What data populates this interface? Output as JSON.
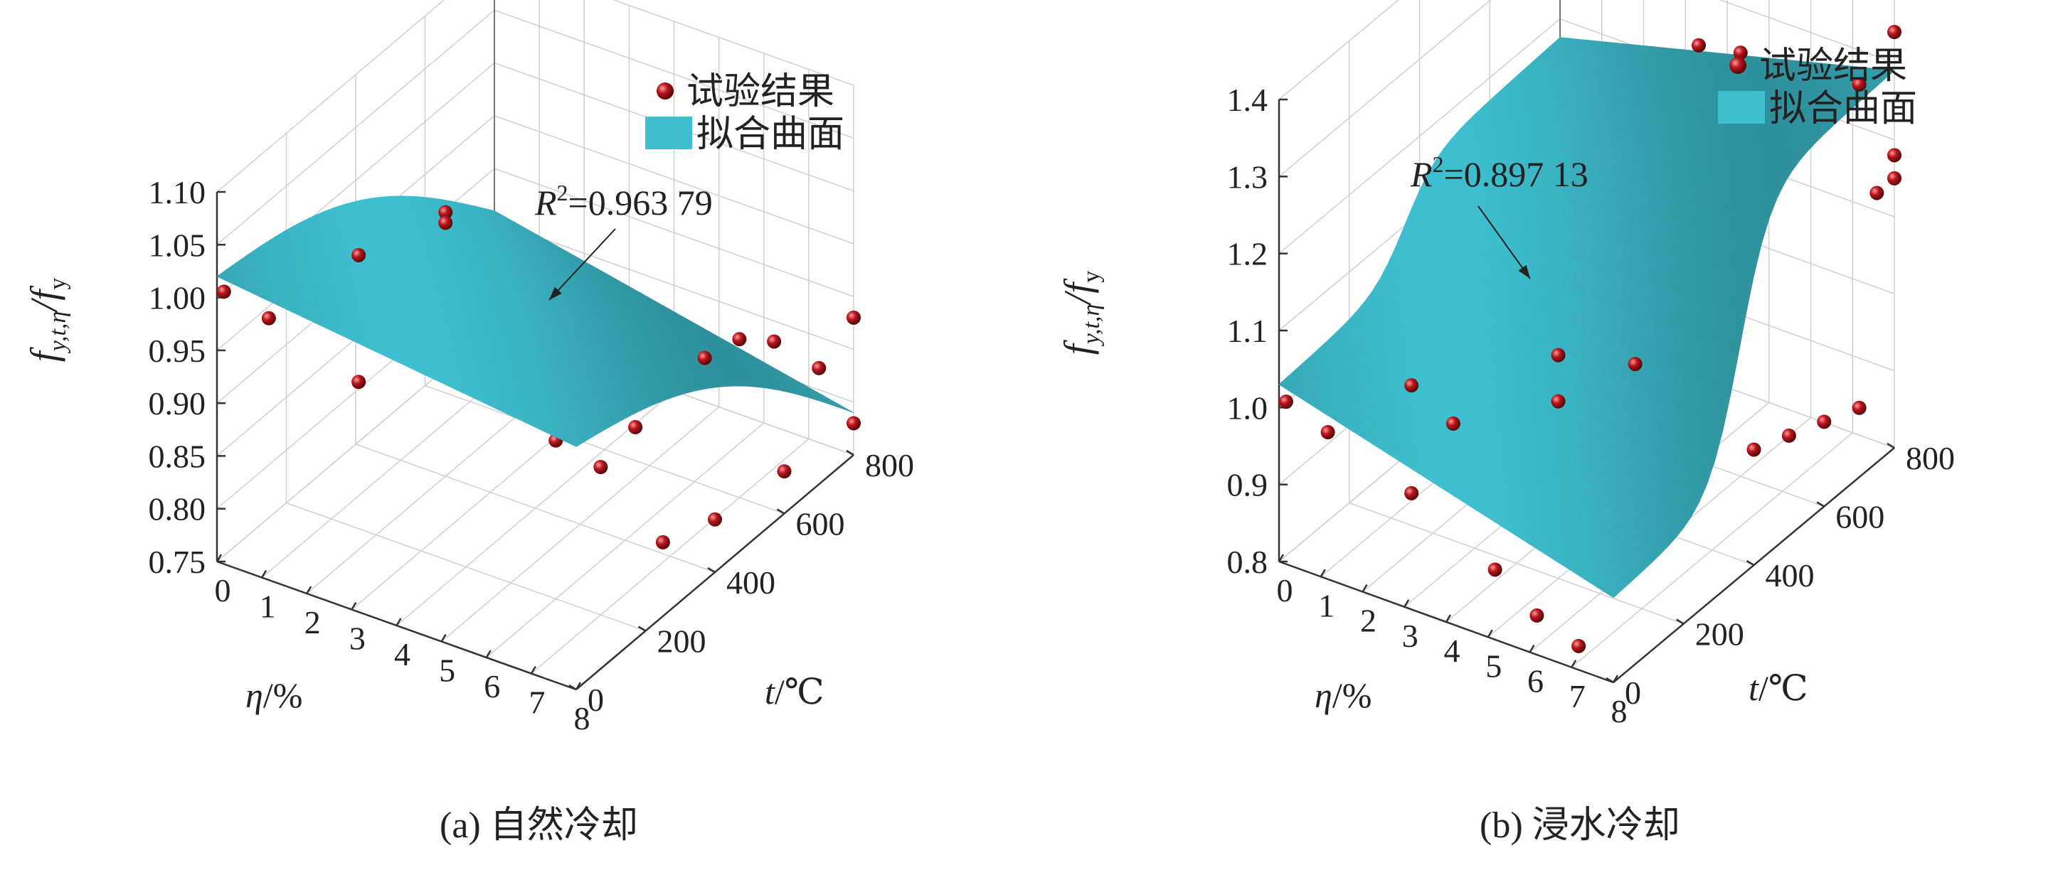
{
  "chart_data": [
    {
      "type": "surface3d",
      "panel_label": "(a)",
      "caption": "自然冷却",
      "ylabel_text": "f",
      "ylabel_sub1": "y,t,η",
      "ylabel_mid": "/f",
      "ylabel_sub2": "y",
      "eta_label": "η/%",
      "t_label": "t/℃",
      "zlim": [
        0.75,
        1.1
      ],
      "z_ticks": [
        "0.75",
        "0.80",
        "0.85",
        "0.90",
        "0.95",
        "1.00",
        "1.05",
        "1.10"
      ],
      "eta_ticks": [
        "0",
        "1",
        "2",
        "3",
        "4",
        "5",
        "6",
        "7",
        "8"
      ],
      "t_ticks": [
        "0",
        "200",
        "400",
        "600",
        "800"
      ],
      "legend": {
        "points": "试验结果",
        "surface": "拟合曲面"
      },
      "annotation": {
        "r": "R",
        "sup": "2",
        "value": "=0.963 79"
      },
      "colors": {
        "surface": "#3ebfcf",
        "surface_edge": "#2a9aa9",
        "points": "#b8151c"
      },
      "points": [
        {
          "eta": 0,
          "t": 20,
          "z": 1.0
        },
        {
          "eta": 1,
          "t": 20,
          "z": 0.99
        },
        {
          "eta": 3,
          "t": 20,
          "z": 1.08
        },
        {
          "eta": 3,
          "t": 20,
          "z": 0.96
        },
        {
          "eta": 5,
          "t": 200,
          "z": 0.92
        },
        {
          "eta": 6,
          "t": 200,
          "z": 0.9
        },
        {
          "eta": 7,
          "t": 200,
          "z": 0.89
        },
        {
          "eta": 7,
          "t": 300,
          "z": 0.9
        },
        {
          "eta": 2,
          "t": 400,
          "z": 1.0
        },
        {
          "eta": 2,
          "t": 400,
          "z": 0.99
        },
        {
          "eta": 6,
          "t": 500,
          "z": 0.91
        },
        {
          "eta": 7,
          "t": 500,
          "z": 0.91
        },
        {
          "eta": 7,
          "t": 600,
          "z": 0.9
        },
        {
          "eta": 7,
          "t": 700,
          "z": 0.87
        },
        {
          "eta": 8,
          "t": 700,
          "z": 0.86
        },
        {
          "eta": 8,
          "t": 800,
          "z": 0.88
        },
        {
          "eta": 8,
          "t": 400,
          "z": 0.8
        },
        {
          "eta": 8,
          "t": 600,
          "z": 0.79
        },
        {
          "eta": 8,
          "t": 800,
          "z": 0.78
        },
        {
          "eta": 8,
          "t": 250,
          "z": 0.82
        }
      ]
    },
    {
      "type": "surface3d",
      "panel_label": "(b)",
      "caption": "浸水冷却",
      "ylabel_text": "f",
      "ylabel_sub1": "y,t,η",
      "ylabel_mid": "/f",
      "ylabel_sub2": "y",
      "eta_label": "η/%",
      "t_label": "t/℃",
      "zlim": [
        0.8,
        1.4
      ],
      "z_ticks": [
        "0.8",
        "0.9",
        "1.0",
        "1.1",
        "1.2",
        "1.3",
        "1.4"
      ],
      "eta_ticks": [
        "0",
        "1",
        "2",
        "3",
        "4",
        "5",
        "6",
        "7",
        "8"
      ],
      "t_ticks": [
        "0",
        "200",
        "400",
        "600",
        "800"
      ],
      "legend": {
        "points": "试验结果",
        "surface": "拟合曲面"
      },
      "annotation": {
        "r": "R",
        "sup": "2",
        "value": "=0.897 13"
      },
      "colors": {
        "surface": "#3ebfcf",
        "surface_edge": "#2a9aa9",
        "points": "#b8151c"
      },
      "points": [
        {
          "eta": 0,
          "t": 20,
          "z": 1.0
        },
        {
          "eta": 1,
          "t": 20,
          "z": 0.98
        },
        {
          "eta": 3,
          "t": 20,
          "z": 0.94
        },
        {
          "eta": 3,
          "t": 20,
          "z": 1.08
        },
        {
          "eta": 4,
          "t": 20,
          "z": 1.05
        },
        {
          "eta": 5,
          "t": 20,
          "z": 0.88
        },
        {
          "eta": 6,
          "t": 20,
          "z": 0.84
        },
        {
          "eta": 7,
          "t": 20,
          "z": 0.82
        },
        {
          "eta": 5,
          "t": 200,
          "z": 1.09
        },
        {
          "eta": 5,
          "t": 200,
          "z": 1.03
        },
        {
          "eta": 6,
          "t": 300,
          "z": 1.06
        },
        {
          "eta": 7,
          "t": 300,
          "z": 0.95
        },
        {
          "eta": 8,
          "t": 400,
          "z": 0.95
        },
        {
          "eta": 8,
          "t": 500,
          "z": 0.93
        },
        {
          "eta": 5,
          "t": 600,
          "z": 1.34
        },
        {
          "eta": 6,
          "t": 600,
          "z": 1.35
        },
        {
          "eta": 6,
          "t": 700,
          "z": 1.24
        },
        {
          "eta": 7,
          "t": 700,
          "z": 1.24
        },
        {
          "eta": 8,
          "t": 700,
          "z": 1.31
        },
        {
          "eta": 8,
          "t": 800,
          "z": 1.34
        },
        {
          "eta": 8,
          "t": 800,
          "z": 1.15
        },
        {
          "eta": 8,
          "t": 750,
          "z": 1.15
        },
        {
          "eta": 8,
          "t": 800,
          "z": 1.18
        },
        {
          "eta": 8,
          "t": 600,
          "z": 0.91
        },
        {
          "eta": 8,
          "t": 700,
          "z": 0.89
        }
      ]
    }
  ]
}
